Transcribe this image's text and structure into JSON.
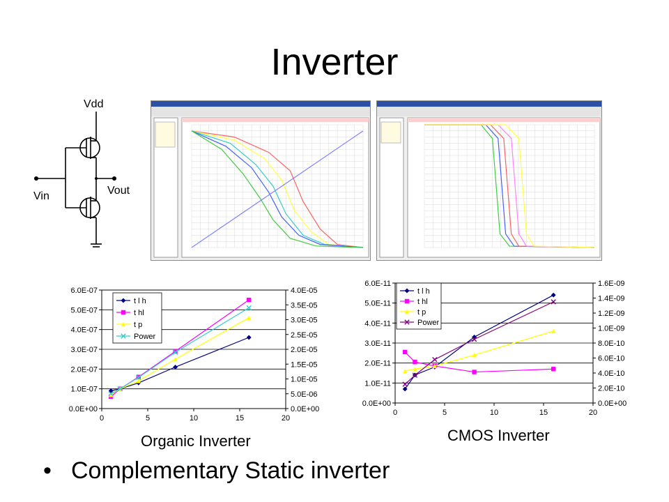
{
  "slide": {
    "title": "Inverter",
    "bullet": "Complementary Static inverter",
    "captions": {
      "organic": "Organic Inverter",
      "cmos": "CMOS Inverter"
    }
  },
  "schematic": {
    "vdd": "Vdd",
    "vin": "Vin",
    "vout": "Vout"
  },
  "chart_data": [
    {
      "type": "line",
      "name": "organic-inverter-chart",
      "title": "",
      "xlabel": "",
      "ylabel": "",
      "y2label": "",
      "xlim": [
        0,
        20
      ],
      "ylim": [
        0,
        6e-07
      ],
      "y2lim": [
        0,
        4e-05
      ],
      "x_ticks": [
        "0",
        "5",
        "10",
        "15",
        "20"
      ],
      "y_ticks": [
        "0.0E+00",
        "1.0E-07",
        "2.0E-07",
        "3.0E-07",
        "4.0E-07",
        "5.0E-07",
        "6.0E-07"
      ],
      "y2_ticks": [
        "0.0E+00",
        "5.0E-06",
        "1.0E-05",
        "1.5E-05",
        "2.0E-05",
        "2.5E-05",
        "3.0E-05",
        "3.5E-05",
        "4.0E-05"
      ],
      "grid": true,
      "legend": "top-left",
      "series": [
        {
          "name": "t l h",
          "axis": "left",
          "color": "#000080",
          "marker": "diamond",
          "x": [
            1,
            2,
            4,
            8,
            16
          ],
          "values": [
            9e-08,
            1e-07,
            1.3e-07,
            2.1e-07,
            3.6e-07
          ]
        },
        {
          "name": "t hl",
          "axis": "left",
          "color": "#ff00ff",
          "marker": "square",
          "x": [
            1,
            2,
            4,
            8,
            16
          ],
          "values": [
            6e-08,
            1e-07,
            1.6e-07,
            2.9e-07,
            5.5e-07
          ]
        },
        {
          "name": "t p",
          "axis": "left",
          "color": "#ffff00",
          "marker": "triangle",
          "x": [
            1,
            2,
            4,
            8,
            16
          ],
          "values": [
            7e-08,
            1e-07,
            1.4e-07,
            2.5e-07,
            4.6e-07
          ]
        },
        {
          "name": "Power",
          "axis": "right",
          "color": "#33cccc",
          "marker": "x",
          "x": [
            1,
            2,
            4,
            8,
            16
          ],
          "values": [
            5e-06,
            6.7e-06,
            1.05e-05,
            1.9e-05,
            3.4e-05
          ]
        }
      ]
    },
    {
      "type": "line",
      "name": "cmos-inverter-chart",
      "title": "",
      "xlabel": "",
      "ylabel": "",
      "y2label": "",
      "xlim": [
        0,
        20
      ],
      "ylim": [
        0,
        6e-11
      ],
      "y2lim": [
        0,
        1.6e-09
      ],
      "x_ticks": [
        "0",
        "5",
        "10",
        "15",
        "20"
      ],
      "y_ticks": [
        "0.0E+00",
        "1.0E-11",
        "2.0E-11",
        "3.0E-11",
        "4.0E-11",
        "5.0E-11",
        "6.0E-11"
      ],
      "y2_ticks": [
        "0.0E+00",
        "2.0E-10",
        "4.0E-10",
        "6.0E-10",
        "8.0E-10",
        "1.0E-09",
        "1.2E-09",
        "1.4E-09",
        "1.6E-09"
      ],
      "grid": true,
      "legend": "top-left",
      "series": [
        {
          "name": "t l h",
          "axis": "left",
          "color": "#000080",
          "marker": "diamond",
          "x": [
            1,
            2,
            4,
            8,
            16
          ],
          "values": [
            7e-12,
            1.4e-11,
            1.8e-11,
            3.3e-11,
            5.4e-11
          ]
        },
        {
          "name": "t hl",
          "axis": "left",
          "color": "#ff00ff",
          "marker": "square",
          "x": [
            1,
            2,
            4,
            8,
            16
          ],
          "values": [
            2.55e-11,
            2.05e-11,
            1.85e-11,
            1.55e-11,
            1.7e-11
          ]
        },
        {
          "name": "t p",
          "axis": "left",
          "color": "#ffff00",
          "marker": "triangle",
          "x": [
            1,
            2,
            4,
            8,
            16
          ],
          "values": [
            1.6e-11,
            1.7e-11,
            1.85e-11,
            2.4e-11,
            3.6e-11
          ]
        },
        {
          "name": "Power",
          "axis": "right",
          "color": "#800080",
          "marker": "x",
          "x": [
            1,
            2,
            4,
            8,
            16
          ],
          "values": [
            2.5e-10,
            3.7e-10,
            5.8e-10,
            8.5e-10,
            1.35e-09
          ]
        }
      ]
    },
    {
      "type": "line",
      "name": "organic-vtc-simulation",
      "title": "",
      "xlabel": "",
      "ylabel": "",
      "xlim": [
        0,
        40
      ],
      "ylim": [
        0,
        40
      ],
      "grid": true,
      "series": [
        {
          "color": "#ff6060",
          "x": [
            0,
            10,
            18,
            23,
            26,
            30,
            34,
            40
          ],
          "values": [
            38,
            36,
            31,
            25,
            15,
            6,
            1,
            0
          ]
        },
        {
          "color": "#ffff40",
          "x": [
            0,
            10,
            17,
            21,
            24,
            28,
            32,
            40
          ],
          "values": [
            38,
            35,
            29,
            22,
            12,
            5,
            1,
            0
          ]
        },
        {
          "color": "#33cccc",
          "x": [
            0,
            9,
            15,
            19,
            22,
            26,
            31,
            40
          ],
          "values": [
            38,
            34,
            27,
            20,
            11,
            4,
            1,
            0
          ]
        },
        {
          "color": "#4060ff",
          "x": [
            0,
            8,
            14,
            18,
            21,
            25,
            30,
            40
          ],
          "values": [
            38,
            33,
            26,
            18,
            10,
            4,
            1,
            0
          ]
        },
        {
          "color": "#40cc40",
          "x": [
            0,
            7,
            12,
            16,
            19,
            23,
            29,
            40
          ],
          "values": [
            38,
            32,
            24,
            16,
            9,
            3,
            0.5,
            0
          ]
        },
        {
          "color": "#8080ff",
          "x": [
            0,
            40
          ],
          "values": [
            0,
            38
          ]
        }
      ]
    },
    {
      "type": "line",
      "name": "cmos-vtc-simulation",
      "title": "",
      "xlabel": "",
      "ylabel": "",
      "xlim": [
        0,
        1.8
      ],
      "ylim": [
        0,
        1.8
      ],
      "grid": true,
      "series": [
        {
          "color": "#40cc40",
          "x": [
            0,
            0.6,
            0.72,
            0.76,
            0.8,
            0.9,
            1.8
          ],
          "values": [
            1.8,
            1.8,
            1.6,
            0.9,
            0.2,
            0.02,
            0
          ]
        },
        {
          "color": "#4060ff",
          "x": [
            0,
            0.65,
            0.78,
            0.82,
            0.86,
            0.95,
            1.8
          ],
          "values": [
            1.8,
            1.8,
            1.6,
            0.9,
            0.2,
            0.02,
            0
          ]
        },
        {
          "color": "#ff6060",
          "x": [
            0,
            0.7,
            0.84,
            0.88,
            0.92,
            1.0,
            1.8
          ],
          "values": [
            1.8,
            1.8,
            1.6,
            0.9,
            0.2,
            0.02,
            0
          ]
        },
        {
          "color": "#ff80ff",
          "x": [
            0,
            0.78,
            0.92,
            0.96,
            1.0,
            1.08,
            1.8
          ],
          "values": [
            1.8,
            1.8,
            1.6,
            0.9,
            0.2,
            0.02,
            0
          ]
        },
        {
          "color": "#ffff40",
          "x": [
            0,
            0.86,
            1.0,
            1.04,
            1.08,
            1.16,
            1.8
          ],
          "values": [
            1.8,
            1.8,
            1.6,
            0.9,
            0.2,
            0.02,
            0
          ]
        }
      ]
    }
  ]
}
